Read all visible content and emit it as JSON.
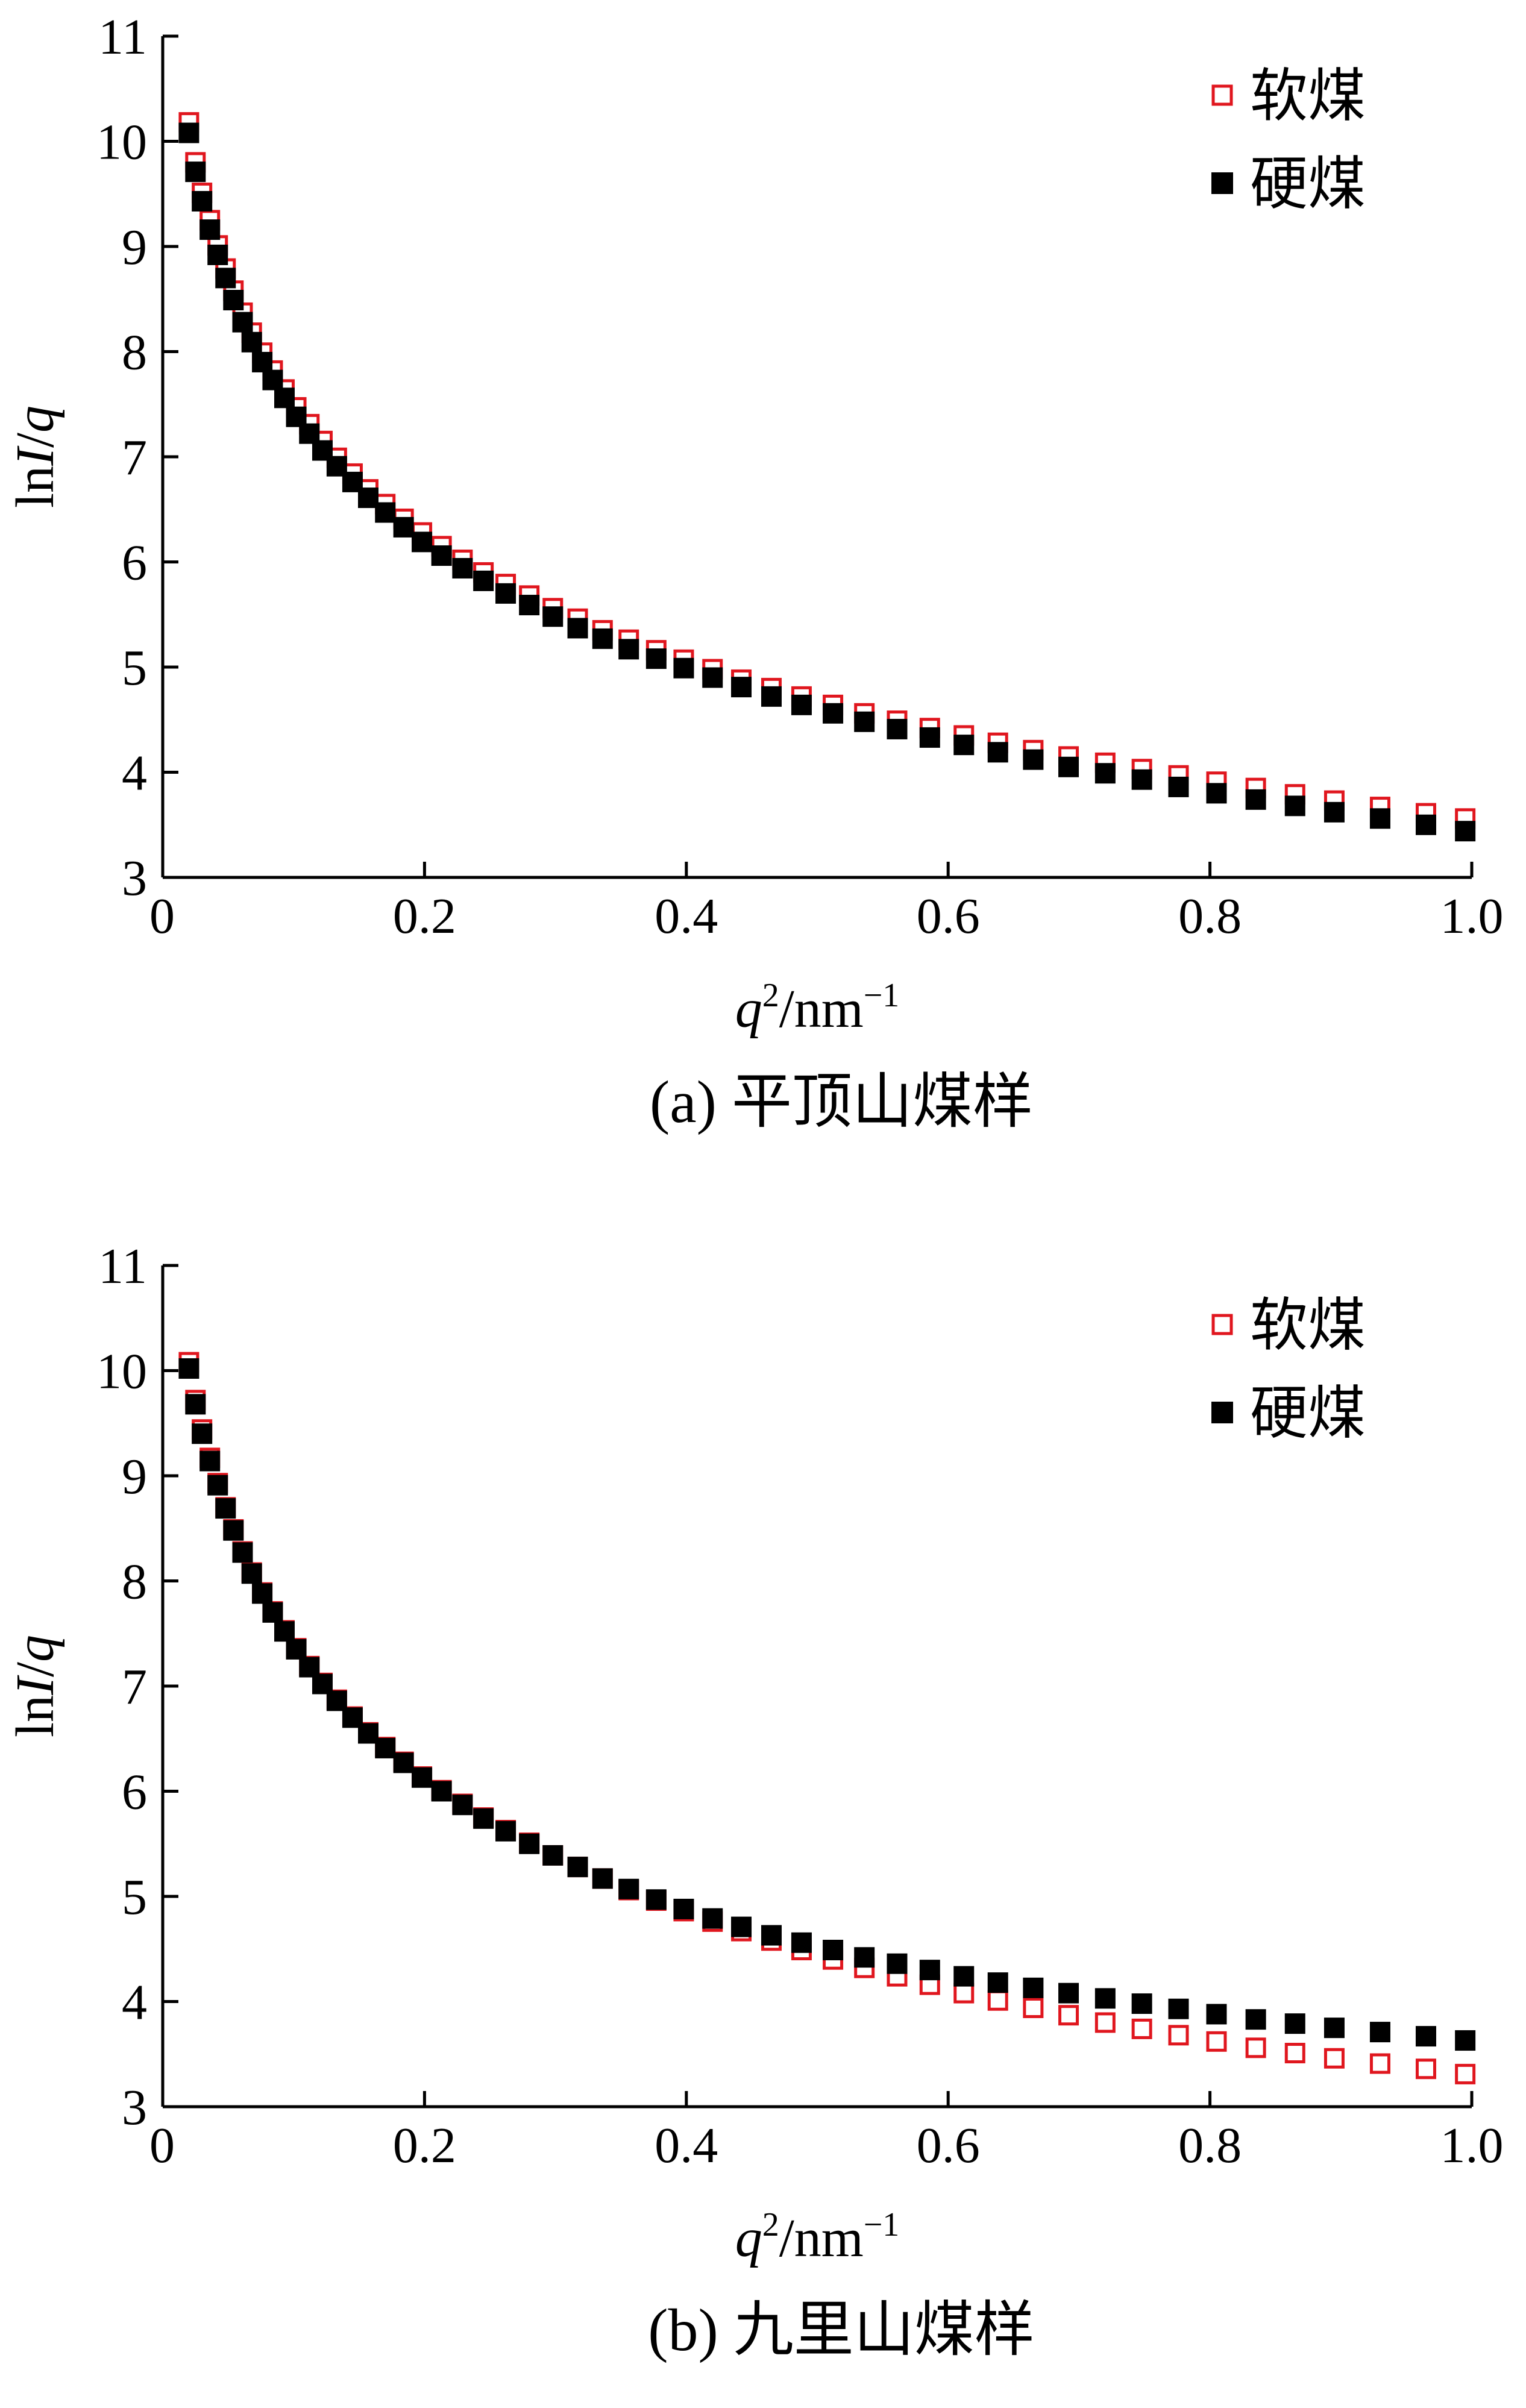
{
  "chart_data": [
    {
      "type": "scatter",
      "caption": "(a)  平顶山煤样",
      "xlabel": {
        "base": "q",
        "sup": "2",
        "unit": "/nm",
        "unit_sup": "−1"
      },
      "ylabel": {
        "prefix": "ln",
        "italic": "I",
        "slash": "/",
        "tail": "q"
      },
      "xlim": [
        0,
        1.0
      ],
      "ylim": [
        3,
        11
      ],
      "xticks": [
        "0",
        "0.2",
        "0.4",
        "0.6",
        "0.8",
        "1.0"
      ],
      "yticks": [
        "3",
        "4",
        "5",
        "6",
        "7",
        "8",
        "9",
        "10",
        "11"
      ],
      "legend_position": "top-right",
      "x": [
        0.02,
        0.025,
        0.03,
        0.036,
        0.042,
        0.048,
        0.054,
        0.061,
        0.068,
        0.076,
        0.084,
        0.093,
        0.102,
        0.112,
        0.122,
        0.133,
        0.145,
        0.157,
        0.17,
        0.184,
        0.198,
        0.213,
        0.229,
        0.245,
        0.262,
        0.28,
        0.298,
        0.317,
        0.336,
        0.356,
        0.377,
        0.398,
        0.42,
        0.442,
        0.465,
        0.488,
        0.512,
        0.536,
        0.561,
        0.586,
        0.612,
        0.638,
        0.665,
        0.692,
        0.72,
        0.748,
        0.776,
        0.805,
        0.835,
        0.865,
        0.895,
        0.93,
        0.965,
        0.995
      ],
      "series": [
        {
          "name": "软煤",
          "marker": "open-square",
          "color": "#e0161e",
          "values": [
            10.18,
            9.8,
            9.51,
            9.25,
            9.01,
            8.79,
            8.58,
            8.37,
            8.18,
            7.99,
            7.82,
            7.64,
            7.47,
            7.31,
            7.15,
            6.99,
            6.84,
            6.69,
            6.55,
            6.41,
            6.28,
            6.15,
            6.02,
            5.9,
            5.79,
            5.68,
            5.56,
            5.46,
            5.35,
            5.26,
            5.16,
            5.07,
            4.98,
            4.88,
            4.8,
            4.72,
            4.64,
            4.56,
            4.49,
            4.42,
            4.35,
            4.28,
            4.21,
            4.15,
            4.09,
            4.03,
            3.97,
            3.91,
            3.85,
            3.79,
            3.73,
            3.67,
            3.61,
            3.56
          ]
        },
        {
          "name": "硬煤",
          "marker": "filled-square",
          "color": "#000000",
          "values": [
            10.08,
            9.71,
            9.43,
            9.16,
            8.92,
            8.7,
            8.49,
            8.28,
            8.09,
            7.9,
            7.73,
            7.56,
            7.38,
            7.22,
            7.06,
            6.91,
            6.76,
            6.61,
            6.47,
            6.33,
            6.19,
            6.06,
            5.94,
            5.82,
            5.7,
            5.59,
            5.48,
            5.37,
            5.27,
            5.17,
            5.08,
            4.99,
            4.9,
            4.81,
            4.72,
            4.64,
            4.56,
            4.48,
            4.41,
            4.33,
            4.26,
            4.19,
            4.12,
            4.05,
            3.99,
            3.93,
            3.86,
            3.8,
            3.74,
            3.68,
            3.62,
            3.56,
            3.5,
            3.44
          ]
        }
      ]
    },
    {
      "type": "scatter",
      "caption": "(b)  九里山煤样",
      "xlabel": {
        "base": "q",
        "sup": "2",
        "unit": "/nm",
        "unit_sup": "−1"
      },
      "ylabel": {
        "prefix": "ln",
        "italic": "I",
        "slash": "/",
        "tail": "q"
      },
      "xlim": [
        0,
        1.0
      ],
      "ylim": [
        3,
        11
      ],
      "xticks": [
        "0",
        "0.2",
        "0.4",
        "0.6",
        "0.8",
        "1.0"
      ],
      "yticks": [
        "3",
        "4",
        "5",
        "6",
        "7",
        "8",
        "9",
        "10",
        "11"
      ],
      "legend_position": "top-right",
      "x": [
        0.02,
        0.025,
        0.03,
        0.036,
        0.042,
        0.048,
        0.054,
        0.061,
        0.068,
        0.076,
        0.084,
        0.093,
        0.102,
        0.112,
        0.122,
        0.133,
        0.145,
        0.157,
        0.17,
        0.184,
        0.198,
        0.213,
        0.229,
        0.245,
        0.262,
        0.28,
        0.298,
        0.317,
        0.336,
        0.356,
        0.377,
        0.398,
        0.42,
        0.442,
        0.465,
        0.488,
        0.512,
        0.536,
        0.561,
        0.586,
        0.612,
        0.638,
        0.665,
        0.692,
        0.72,
        0.748,
        0.776,
        0.805,
        0.835,
        0.865,
        0.895,
        0.93,
        0.965,
        0.995
      ],
      "series": [
        {
          "name": "软煤",
          "marker": "open-square",
          "color": "#e0161e",
          "values": [
            10.08,
            9.72,
            9.44,
            9.17,
            8.93,
            8.7,
            8.49,
            8.28,
            8.08,
            7.89,
            7.71,
            7.53,
            7.36,
            7.19,
            7.03,
            6.87,
            6.71,
            6.56,
            6.42,
            6.28,
            6.14,
            6.01,
            5.88,
            5.75,
            5.63,
            5.51,
            5.39,
            5.28,
            5.17,
            5.06,
            4.96,
            4.86,
            4.76,
            4.67,
            4.58,
            4.49,
            4.4,
            4.32,
            4.24,
            4.16,
            4.08,
            4.01,
            3.94,
            3.87,
            3.8,
            3.74,
            3.68,
            3.62,
            3.56,
            3.51,
            3.46,
            3.41,
            3.36,
            3.31
          ]
        },
        {
          "name": "硬煤",
          "marker": "filled-square",
          "color": "#000000",
          "values": [
            10.02,
            9.68,
            9.4,
            9.14,
            8.91,
            8.69,
            8.48,
            8.27,
            8.07,
            7.88,
            7.7,
            7.52,
            7.35,
            7.18,
            7.02,
            6.86,
            6.7,
            6.55,
            6.41,
            6.27,
            6.13,
            6.0,
            5.87,
            5.74,
            5.62,
            5.5,
            5.39,
            5.28,
            5.17,
            5.07,
            4.97,
            4.88,
            4.79,
            4.71,
            4.63,
            4.56,
            4.49,
            4.42,
            4.36,
            4.3,
            4.24,
            4.18,
            4.13,
            4.08,
            4.03,
            3.98,
            3.93,
            3.88,
            3.83,
            3.79,
            3.75,
            3.71,
            3.67,
            3.63
          ]
        }
      ]
    }
  ]
}
